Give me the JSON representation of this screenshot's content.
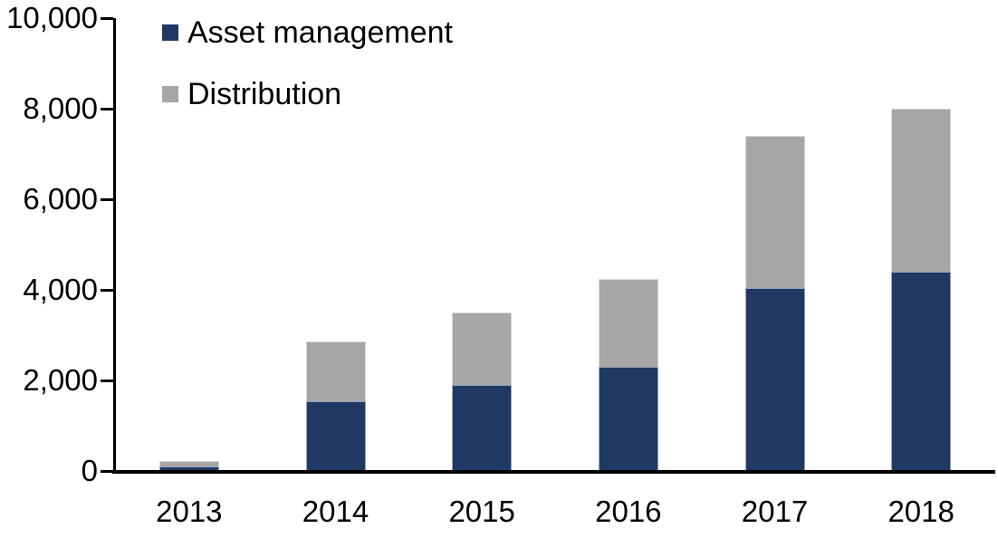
{
  "chart_data": {
    "type": "bar",
    "stacked": true,
    "title": "",
    "xlabel": "",
    "ylabel": "",
    "categories": [
      "2013",
      "2014",
      "2015",
      "2016",
      "2017",
      "2018"
    ],
    "series": [
      {
        "name": "Asset management",
        "color": "#1f3864",
        "values": [
          100,
          1550,
          1900,
          2300,
          4050,
          4400
        ]
      },
      {
        "name": "Distribution",
        "color": "#a6a6a6",
        "values": [
          120,
          1320,
          1600,
          1950,
          3350,
          3600
        ]
      }
    ],
    "stack_totals": [
      220,
      2870,
      3500,
      4250,
      7400,
      8000
    ],
    "ylim": [
      0,
      10000
    ],
    "ytick_interval": 2000,
    "ytick_labels": [
      "0",
      "2,000",
      "4,000",
      "6,000",
      "8,000",
      "10,000"
    ],
    "grid": false,
    "legend_position": "top-left-inside",
    "colors": {
      "background": "#ffffff",
      "axis": "#000000",
      "text": "#000000"
    }
  }
}
